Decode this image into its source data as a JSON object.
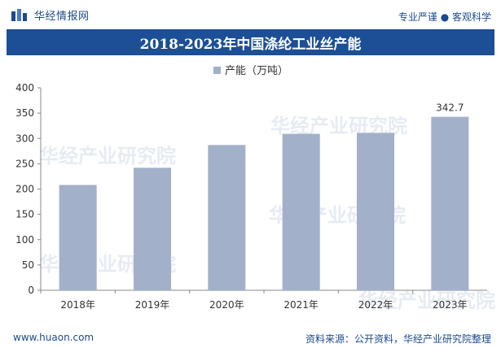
{
  "header": {
    "brand": "华经情报网",
    "slogan": "专业严谨 ● 客观科学"
  },
  "title": "2018-2023年中国涤纶工业丝产能",
  "footer": {
    "website": "www.huaon.com",
    "source": "资料来源：公开资料，华经产业研究院整理"
  },
  "watermark": "华经产业研究院",
  "chart_data": {
    "type": "bar",
    "title": "2018-2023年中国涤纶工业丝产能",
    "categories": [
      "2018年",
      "2019年",
      "2020年",
      "2021年",
      "2022年",
      "2023年"
    ],
    "series": [
      {
        "name": "产能（万吨）",
        "values": [
          208,
          242,
          287,
          309,
          311,
          342.7
        ],
        "color": "#a2b0c9"
      }
    ],
    "data_labels": {
      "2023年": "342.7"
    },
    "ylim": [
      0,
      400
    ],
    "yticks": [
      0,
      50,
      100,
      150,
      200,
      250,
      300,
      350,
      400
    ],
    "grid": false,
    "legend_position": "top-center"
  }
}
